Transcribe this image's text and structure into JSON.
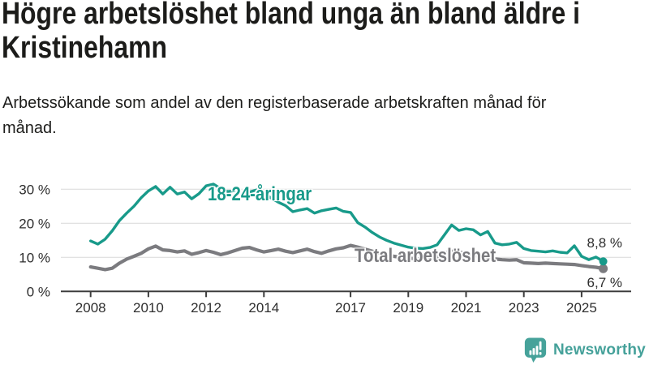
{
  "chart_data": {
    "type": "line",
    "title": "Högre arbetslöshet bland unga än bland äldre i Kristinehamn",
    "subtitle": "Arbetssökande som andel av den registerbaserade arbetskraften månad för månad.",
    "x_start": 2008,
    "x_step": 0.25,
    "x_ticks": [
      2008,
      2010,
      2012,
      2014,
      2017,
      2019,
      2021,
      2023,
      2025
    ],
    "y_ticks": [
      0,
      10,
      20,
      30
    ],
    "y_tick_suffix": " %",
    "ylim": [
      0,
      33.5
    ],
    "grid": true,
    "legend_position": "inline-labels",
    "series": [
      {
        "name": "18-24-åringar",
        "color": "#189a8a",
        "end_label": "8,8 %",
        "end_value": 8.8,
        "values": [
          14.8,
          13.9,
          15.3,
          17.8,
          20.8,
          23.0,
          25.0,
          27.5,
          29.5,
          30.8,
          28.6,
          30.6,
          28.6,
          29.2,
          27.2,
          28.7,
          31.0,
          31.5,
          30.2,
          29.3,
          29.6,
          28.3,
          29.2,
          29.8,
          28.8,
          27.4,
          26.2,
          25.2,
          23.4,
          23.9,
          24.3,
          23.0,
          23.7,
          24.1,
          24.5,
          23.5,
          23.2,
          20.2,
          18.9,
          17.3,
          16.0,
          15.0,
          14.2,
          13.6,
          13.0,
          12.7,
          12.6,
          12.9,
          13.7,
          16.6,
          19.5,
          17.9,
          18.4,
          18.1,
          16.6,
          17.6,
          14.2,
          13.7,
          13.9,
          14.4,
          12.6,
          12.0,
          11.8,
          11.6,
          11.9,
          11.5,
          11.3,
          13.4,
          10.3,
          9.3,
          10.1,
          8.8
        ]
      },
      {
        "name": "Total arbetslöshet",
        "color": "#7b7b7f",
        "end_label": "6,7 %",
        "end_value": 6.7,
        "values": [
          7.2,
          6.8,
          6.4,
          6.8,
          8.3,
          9.5,
          10.3,
          11.2,
          12.5,
          13.3,
          12.2,
          12.0,
          11.6,
          11.9,
          10.9,
          11.4,
          12.0,
          11.5,
          10.8,
          11.3,
          12.0,
          12.7,
          12.9,
          12.2,
          11.6,
          12.0,
          12.4,
          11.8,
          11.4,
          11.9,
          12.4,
          11.7,
          11.2,
          11.9,
          12.5,
          12.8,
          13.5,
          13.0,
          12.4,
          11.8,
          11.2,
          10.7,
          10.3,
          10.0,
          9.8,
          9.6,
          9.5,
          9.7,
          10.2,
          11.2,
          11.8,
          11.5,
          11.2,
          10.9,
          10.4,
          9.9,
          9.5,
          9.3,
          9.2,
          9.3,
          8.4,
          8.3,
          8.2,
          8.3,
          8.2,
          8.1,
          8.0,
          7.9,
          7.6,
          7.3,
          7.1,
          6.7
        ]
      }
    ]
  },
  "footer": {
    "brand": "Newsworthy"
  }
}
